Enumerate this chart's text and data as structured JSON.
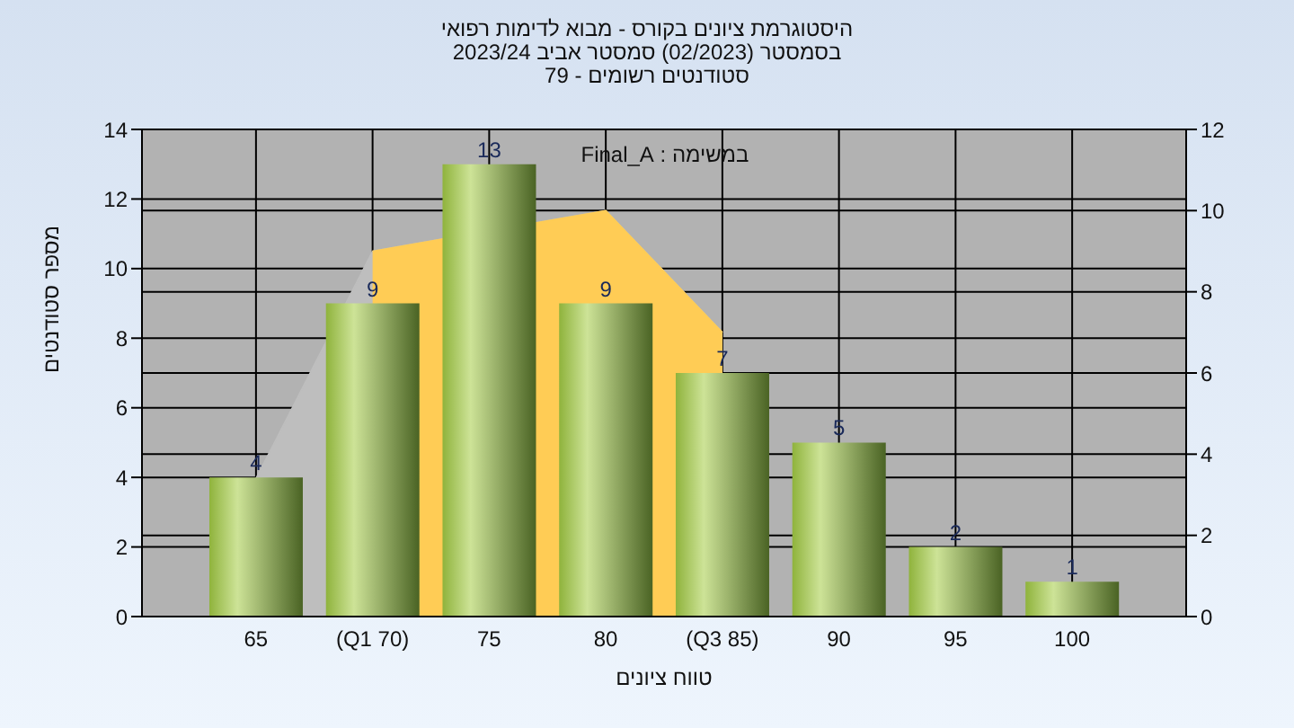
{
  "chart_data": {
    "type": "bar",
    "title": "היסטוגרמת ציונים בקורס - מבוא לדימות רפואי\nבסמסטר  (02/2023)  סמסטר אביב 2023/24\nסטודנטים רשומים - 79",
    "xlabel": "טווח ציונים",
    "ylabel": "מספר סטודנטים",
    "annotations": [
      "במשימה : Final_A"
    ],
    "categories": [
      "65",
      "(Q1 70)",
      "75",
      "80",
      "(Q3 85)",
      "90",
      "95",
      "100"
    ],
    "series": [
      {
        "type": "area",
        "axis": "y2",
        "color": "#bebebe",
        "values": [
          3.4,
          9,
          null,
          10,
          7,
          null,
          null,
          null
        ]
      },
      {
        "type": "area",
        "axis": "y2",
        "color": "#ffcc55",
        "values": [
          null,
          9,
          null,
          10,
          7,
          null,
          null,
          null
        ]
      },
      {
        "color": "#8fb33c",
        "values": [
          4,
          9,
          13,
          9,
          7,
          5,
          2,
          1
        ],
        "value_labels": [
          "4",
          "9",
          "13",
          "9",
          "7",
          "5",
          "2",
          "1"
        ]
      }
    ],
    "ylim": [
      0,
      14
    ],
    "yticks": [
      0,
      2,
      4,
      6,
      8,
      10,
      12,
      14
    ],
    "y2lim": [
      0,
      12
    ],
    "y2ticks": [
      0,
      2,
      4,
      6,
      8,
      10,
      12
    ],
    "grid": true
  }
}
